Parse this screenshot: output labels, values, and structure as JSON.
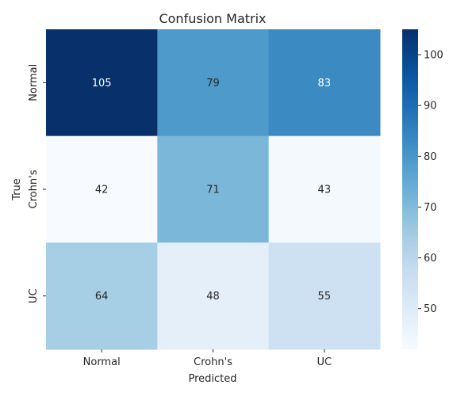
{
  "chart_data": {
    "type": "heatmap",
    "title": "Confusion Matrix",
    "xlabel": "Predicted",
    "ylabel": "True",
    "x_categories": [
      "Normal",
      "Crohn's",
      "UC"
    ],
    "y_categories": [
      "Normal",
      "Crohn's",
      "UC"
    ],
    "values": [
      [
        105,
        79,
        83
      ],
      [
        42,
        71,
        43
      ],
      [
        64,
        48,
        55
      ]
    ],
    "colormap": "Blues",
    "vmin": 42,
    "vmax": 105,
    "colorbar_ticks": [
      50,
      60,
      70,
      80,
      90,
      100
    ],
    "annotations_shown": true
  }
}
